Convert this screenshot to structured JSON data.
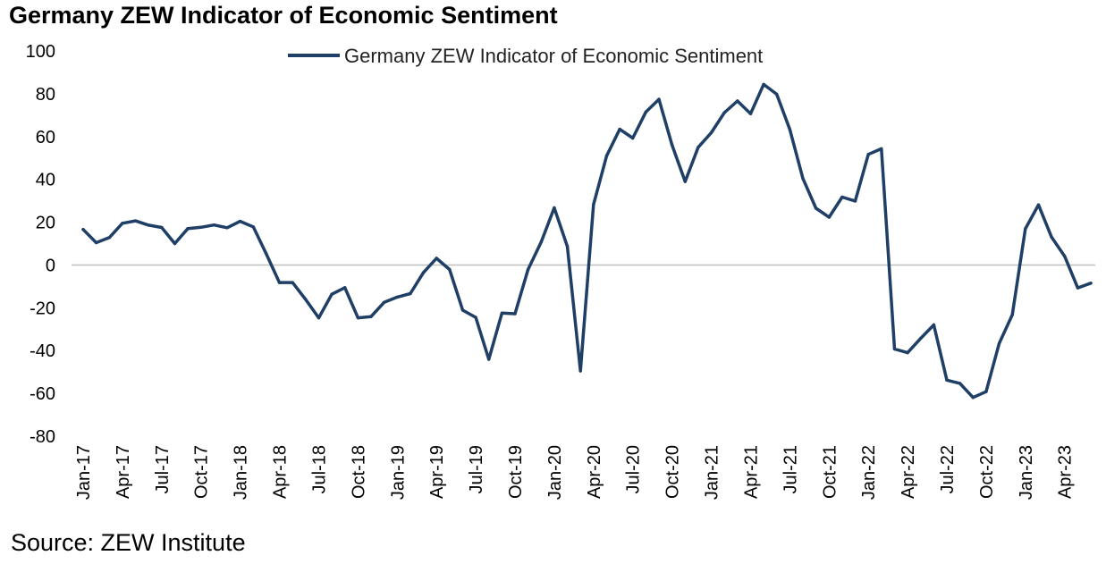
{
  "title": "Germany ZEW Indicator of Economic Sentiment",
  "source": "Source: ZEW Institute",
  "colors": {
    "line": "#1f3f66",
    "zero_line": "#bfbfbf"
  },
  "chart_data": {
    "type": "line",
    "title": "Germany ZEW Indicator of Economic Sentiment",
    "xlabel": "",
    "ylabel": "",
    "ylim": [
      -80,
      100
    ],
    "yticks": [
      100,
      80,
      60,
      40,
      20,
      0,
      -20,
      -40,
      -60,
      -80
    ],
    "grid": false,
    "zero_line": true,
    "legend": {
      "position": "top-center",
      "entries": [
        "Germany ZEW Indicator of Economic Sentiment"
      ]
    },
    "x_tick_labels": [
      "Jan-17",
      "Apr-17",
      "Jul-17",
      "Oct-17",
      "Jan-18",
      "Apr-18",
      "Jul-18",
      "Oct-18",
      "Jan-19",
      "Apr-19",
      "Jul-19",
      "Oct-19",
      "Jan-20",
      "Apr-20",
      "Jul-20",
      "Oct-20",
      "Jan-21",
      "Apr-21",
      "Jul-21",
      "Oct-21",
      "Jan-22",
      "Apr-22",
      "Jul-22",
      "Oct-22",
      "Jan-23",
      "Apr-23"
    ],
    "x": [
      "Jan-17",
      "Feb-17",
      "Mar-17",
      "Apr-17",
      "May-17",
      "Jun-17",
      "Jul-17",
      "Aug-17",
      "Sep-17",
      "Oct-17",
      "Nov-17",
      "Dec-17",
      "Jan-18",
      "Feb-18",
      "Mar-18",
      "Apr-18",
      "May-18",
      "Jun-18",
      "Jul-18",
      "Aug-18",
      "Sep-18",
      "Oct-18",
      "Nov-18",
      "Dec-18",
      "Jan-19",
      "Feb-19",
      "Mar-19",
      "Apr-19",
      "May-19",
      "Jun-19",
      "Jul-19",
      "Aug-19",
      "Sep-19",
      "Oct-19",
      "Nov-19",
      "Dec-19",
      "Jan-20",
      "Feb-20",
      "Mar-20",
      "Apr-20",
      "May-20",
      "Jun-20",
      "Jul-20",
      "Aug-20",
      "Sep-20",
      "Oct-20",
      "Nov-20",
      "Dec-20",
      "Jan-21",
      "Feb-21",
      "Mar-21",
      "Apr-21",
      "May-21",
      "Jun-21",
      "Jul-21",
      "Aug-21",
      "Sep-21",
      "Oct-21",
      "Nov-21",
      "Dec-21",
      "Jan-22",
      "Feb-22",
      "Mar-22",
      "Apr-22",
      "May-22",
      "Jun-22",
      "Jul-22",
      "Aug-22",
      "Sep-22",
      "Oct-22",
      "Nov-22",
      "Dec-22",
      "Jan-23",
      "Feb-23",
      "Mar-23",
      "Apr-23",
      "May-23",
      "Jun-23"
    ],
    "series": [
      {
        "name": "Germany ZEW Indicator of Economic Sentiment",
        "values": [
          16.6,
          10.4,
          12.8,
          19.5,
          20.6,
          18.6,
          17.5,
          10.0,
          17.0,
          17.6,
          18.7,
          17.4,
          20.4,
          17.8,
          5.1,
          -8.2,
          -8.2,
          -16.1,
          -24.7,
          -13.7,
          -10.6,
          -24.7,
          -24.1,
          -17.5,
          -15.0,
          -13.4,
          -3.6,
          3.1,
          -2.1,
          -21.1,
          -24.5,
          -44.1,
          -22.5,
          -22.8,
          -2.1,
          10.7,
          26.7,
          8.7,
          -49.5,
          28.2,
          51.0,
          63.4,
          59.3,
          71.5,
          77.4,
          56.1,
          39.0,
          55.0,
          61.8,
          71.2,
          76.6,
          70.7,
          84.4,
          79.8,
          63.3,
          40.4,
          26.5,
          22.3,
          31.7,
          29.9,
          51.7,
          54.3,
          -39.3,
          -41.0,
          -34.3,
          -28.0,
          -53.8,
          -55.3,
          -61.9,
          -59.2,
          -36.7,
          -23.3,
          16.9,
          28.1,
          13.0,
          4.1,
          -10.7,
          -8.5
        ]
      }
    ]
  }
}
